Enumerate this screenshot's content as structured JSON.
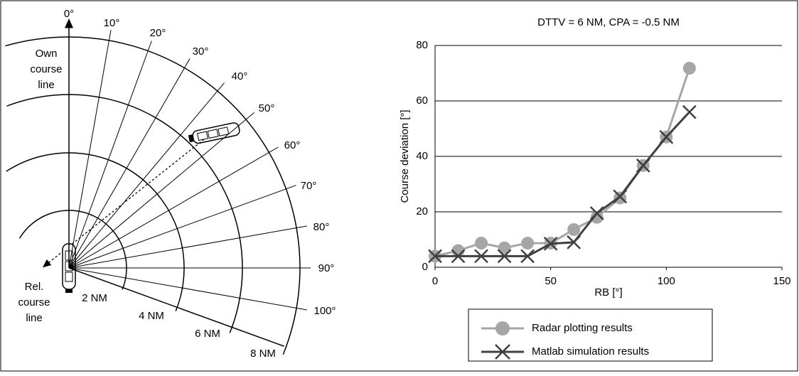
{
  "diagram": {
    "bearing_labels": [
      "0°",
      "10°",
      "20°",
      "30°",
      "40°",
      "50°",
      "60°",
      "70°",
      "80°",
      "90°",
      "100°"
    ],
    "range_labels": [
      "2 NM",
      "4 NM",
      "6 NM",
      "8 NM"
    ],
    "own_course_label": [
      "Own",
      "course",
      "line"
    ],
    "rel_course_label": [
      "Rel.",
      "course",
      "line"
    ]
  },
  "chart_data": {
    "type": "line",
    "title": "DTTV = 6 NM, CPA = -0.5 NM",
    "x_label": "RB [°]",
    "y_label": "Course deviation [°]",
    "x": [
      0,
      10,
      20,
      30,
      40,
      50,
      60,
      70,
      80,
      90,
      100,
      110
    ],
    "series": [
      {
        "name": "Radar plotting results",
        "color": "#a6a6a6",
        "marker": "circle",
        "values": [
          4,
          6,
          8.7,
          7,
          8.7,
          8.7,
          13.6,
          18,
          25,
          36.7,
          47,
          71.8
        ]
      },
      {
        "name": "Matlab simulation results",
        "color": "#404040",
        "marker": "x",
        "values": [
          4,
          4,
          4,
          4,
          4,
          8.5,
          9,
          19.5,
          25.5,
          36.7,
          47,
          56
        ]
      }
    ],
    "xlim": [
      0,
      150
    ],
    "xticks": [
      0,
      50,
      100,
      150
    ],
    "ylim": [
      0,
      80
    ],
    "yticks": [
      0,
      20,
      40,
      60,
      80
    ],
    "grid": true,
    "legend": "bottom"
  }
}
